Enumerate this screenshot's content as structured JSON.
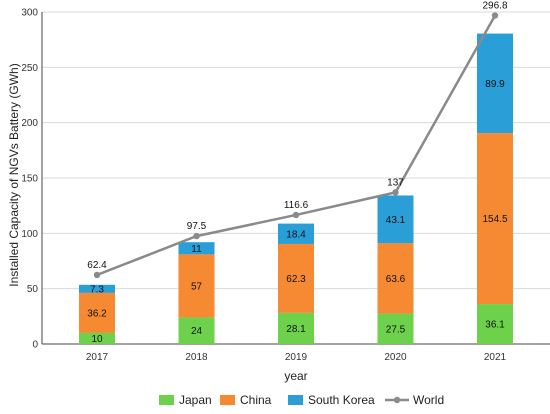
{
  "chart_data": {
    "type": "bar",
    "stacked": true,
    "categories": [
      "2017",
      "2018",
      "2019",
      "2020",
      "2021"
    ],
    "series": [
      {
        "name": "Japan",
        "values": [
          10,
          24,
          28.1,
          27.5,
          36.1
        ],
        "color": "#6ed14b"
      },
      {
        "name": "China",
        "values": [
          36.2,
          57,
          62.3,
          63.6,
          154.5
        ],
        "color": "#f58a33"
      },
      {
        "name": "South Korea",
        "values": [
          7.3,
          11,
          18.4,
          43.1,
          89.9
        ],
        "color": "#2a9ed6"
      }
    ],
    "line_series": {
      "name": "World",
      "values": [
        62.4,
        97.5,
        116.6,
        137,
        296.8
      ],
      "color": "#8a8a8a"
    },
    "xlabel": "year",
    "ylabel": "Installed Capacity of NGVs Battery (GWh)",
    "ylim": [
      0,
      300
    ],
    "yticks": [
      0,
      50,
      100,
      150,
      200,
      250,
      300
    ],
    "grid": true,
    "legend_position": "bottom"
  }
}
